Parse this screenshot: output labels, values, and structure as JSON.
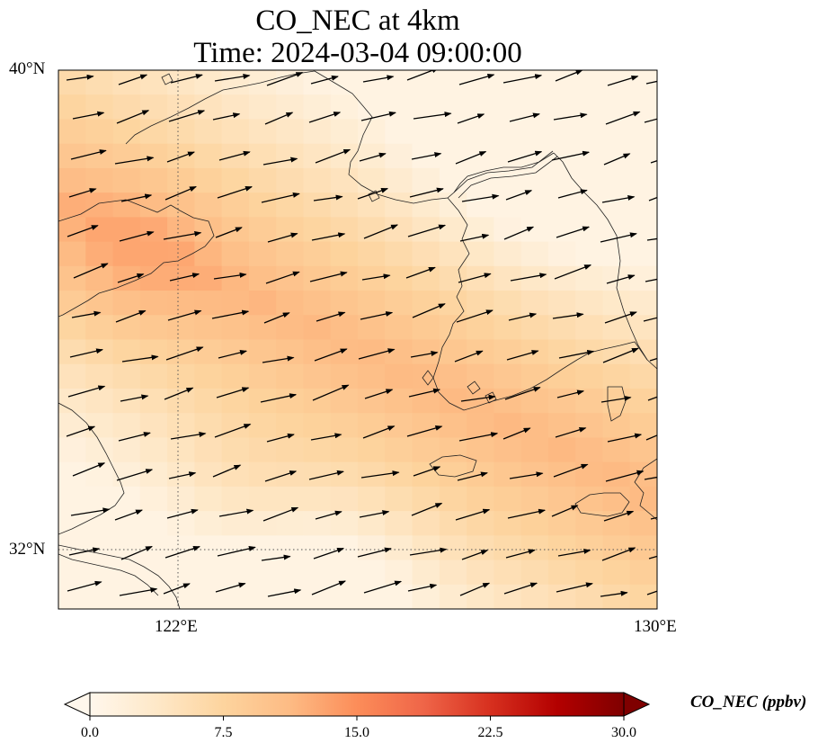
{
  "title": {
    "line1": "CO_NEC at 4km",
    "line2": "Time: 2024-03-04 09:00:00"
  },
  "axes": {
    "lat_labels": [
      "40°N",
      "32°N"
    ],
    "lon_labels": [
      "122°E",
      "130°E"
    ]
  },
  "colorbar": {
    "label": "CO_NEC (ppbv)",
    "ticks": [
      "0.0",
      "7.5",
      "15.0",
      "22.5",
      "30.0"
    ],
    "min": 0.0,
    "max": 30.0,
    "extend": "both",
    "colormap": "OrRd",
    "colors": [
      "#fff7ec",
      "#fee8c8",
      "#fdd49e",
      "#fdbb84",
      "#fc8d59",
      "#ef6548",
      "#d7301f",
      "#b30000",
      "#7f0000"
    ]
  },
  "map": {
    "variable": "CO_NEC",
    "units": "ppbv",
    "level": "4km",
    "lon_range": [
      120,
      130
    ],
    "lat_range": [
      31,
      40
    ],
    "gridlines": {
      "lons": [
        122
      ],
      "lats": [
        32
      ],
      "style": "dotted"
    },
    "field_range_ppbv": [
      1,
      13
    ],
    "wind_vectors": "uniform westerly to west-southwesterly flow across the domain"
  }
}
